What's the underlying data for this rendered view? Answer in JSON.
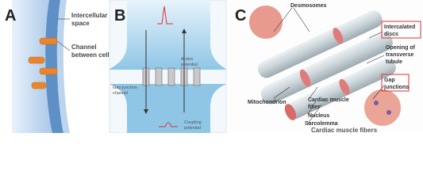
{
  "panel_a": {
    "label": "A",
    "intercellular_space": [
      "Intercellular",
      "space"
    ],
    "channel": [
      "Channel",
      "between cells"
    ]
  },
  "panel_b": {
    "label": "B",
    "action_potential": [
      "Action",
      "potential"
    ],
    "gap_junction_channel": [
      "Gap junction",
      "channel"
    ],
    "coupling_potential": [
      "Coupling",
      "potential"
    ]
  },
  "panel_c": {
    "label": "C",
    "desmosomes": "Desmosomes",
    "intercalated_discs": [
      "Intercalated",
      "discs"
    ],
    "opening": [
      "Opening of",
      "transverse",
      "tubule"
    ],
    "gap_junctions": [
      "Gap",
      "junctions"
    ],
    "mitochondrion": "Mitochondrion",
    "fiber": [
      "Cardiac muscle",
      "fiber"
    ],
    "nucleus": "Nucleus",
    "sarcolemma": "Sarcolemma",
    "caption": "Cardiac muscle fibers"
  }
}
